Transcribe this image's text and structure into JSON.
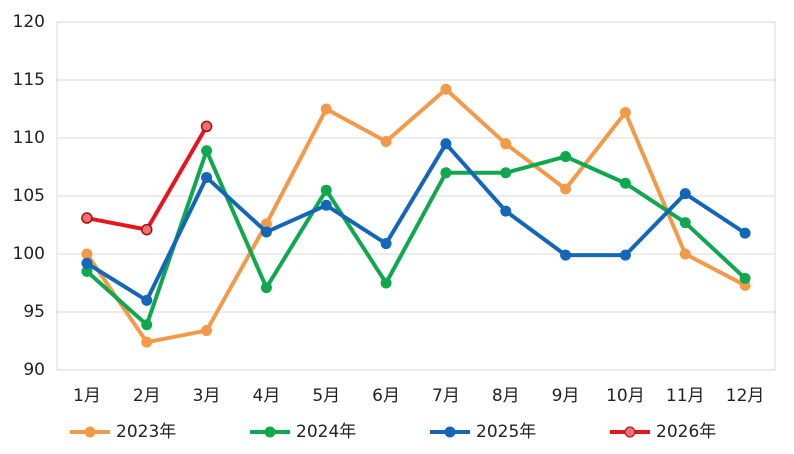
{
  "chart_data": {
    "type": "line",
    "categories": [
      "1月",
      "2月",
      "3月",
      "4月",
      "5月",
      "6月",
      "7月",
      "8月",
      "9月",
      "10月",
      "11月",
      "12月"
    ],
    "series": [
      {
        "name": "2023年",
        "color": "#f39a4a",
        "values": [
          100,
          92.4,
          93.4,
          102.6,
          112.5,
          109.7,
          114.2,
          109.5,
          105.6,
          112.2,
          100,
          97.3
        ]
      },
      {
        "name": "2024年",
        "color": "#10a84f",
        "values": [
          98.5,
          93.9,
          108.9,
          97.1,
          105.5,
          97.5,
          107,
          107,
          108.4,
          106.1,
          102.7,
          97.9
        ]
      },
      {
        "name": "2025年",
        "color": "#1467b8",
        "values": [
          99.2,
          96,
          106.6,
          101.9,
          104.2,
          100.9,
          109.5,
          103.7,
          99.9,
          99.9,
          105.2,
          101.8
        ]
      },
      {
        "name": "2026年",
        "color": "#e8141c",
        "values": [
          103.1,
          102.1,
          111,
          null,
          null,
          null,
          null,
          null,
          null,
          null,
          null,
          null
        ]
      }
    ],
    "ylim": [
      90,
      120
    ],
    "yticks": [
      90,
      95,
      100,
      105,
      110,
      115,
      120
    ],
    "grid": true,
    "legend": "bottom"
  }
}
